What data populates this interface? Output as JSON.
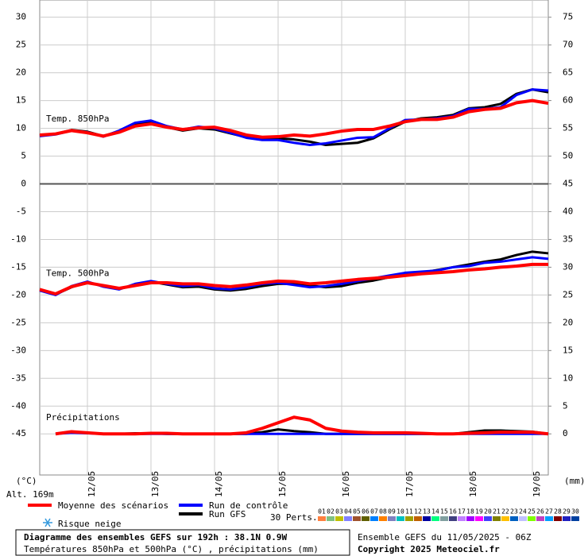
{
  "chart_data": {
    "type": "line",
    "categories": [
      null,
      null,
      null,
      "12/05",
      null,
      null,
      null,
      "13/05",
      null,
      null,
      null,
      "14/05",
      null,
      null,
      null,
      "15/05",
      null,
      null,
      null,
      "16/05",
      null,
      null,
      null,
      "17/05",
      null,
      null,
      null,
      "18/05",
      null,
      null,
      null,
      "19/05",
      null
    ],
    "ylim": [
      -52.4,
      33.1
    ],
    "yticks": [
      30,
      25,
      20,
      15,
      10,
      5,
      0,
      -5,
      -10,
      -15,
      -20,
      -25,
      -30,
      -35,
      -40,
      -45
    ],
    "y2lim": [
      -7.4,
      78.1
    ],
    "y2ticks": [
      75,
      70,
      65,
      60,
      55,
      50,
      45,
      40,
      35,
      30,
      25,
      20,
      15,
      10,
      5,
      0
    ],
    "ylabel": "(°C)",
    "y2label": "(mm)",
    "altitude": "Alt. 169m",
    "grid": true,
    "legend": {
      "mean": {
        "name": "Moyenne des scénarios",
        "color": "#ff0000"
      },
      "control": {
        "name": "Run de contrôle",
        "color": "#0000ff"
      },
      "gfs": {
        "name": "Run GFS",
        "color": "#000000"
      },
      "snow": "Risque neige",
      "perturbations_label": "30 Perts.",
      "perturbations": [
        {
          "name": "01",
          "color": "#ff8040"
        },
        {
          "name": "02",
          "color": "#80c080"
        },
        {
          "name": "03",
          "color": "#c0c000"
        },
        {
          "name": "04",
          "color": "#8080ff"
        },
        {
          "name": "05",
          "color": "#a0522d"
        },
        {
          "name": "06",
          "color": "#606000"
        },
        {
          "name": "07",
          "color": "#0080ff"
        },
        {
          "name": "08",
          "color": "#ff8000"
        },
        {
          "name": "09",
          "color": "#8080c0"
        },
        {
          "name": "10",
          "color": "#00c0c0"
        },
        {
          "name": "11",
          "color": "#a0a000"
        },
        {
          "name": "12",
          "color": "#c06000"
        },
        {
          "name": "13",
          "color": "#0000a0"
        },
        {
          "name": "14",
          "color": "#00ff80"
        },
        {
          "name": "15",
          "color": "#80a0a0"
        },
        {
          "name": "16",
          "color": "#404080"
        },
        {
          "name": "17",
          "color": "#c080ff"
        },
        {
          "name": "18",
          "color": "#a000ff"
        },
        {
          "name": "19",
          "color": "#ff00ff"
        },
        {
          "name": "20",
          "color": "#4040ff"
        },
        {
          "name": "21",
          "color": "#808000"
        },
        {
          "name": "22",
          "color": "#ffc000"
        },
        {
          "name": "23",
          "color": "#0060c0"
        },
        {
          "name": "24",
          "color": "#c0c0ff"
        },
        {
          "name": "25",
          "color": "#80ff00"
        },
        {
          "name": "26",
          "color": "#c040c0"
        },
        {
          "name": "27",
          "color": "#00a0ff"
        },
        {
          "name": "28",
          "color": "#800000"
        },
        {
          "name": "29",
          "color": "#2020c0"
        },
        {
          "name": "30",
          "color": "#0040a0"
        }
      ]
    },
    "panels": [
      {
        "label": "Temp. 850hPa",
        "axis": "y",
        "mean": [
          8.8,
          9,
          9.6,
          9.2,
          8.6,
          9.3,
          10.4,
          10.8,
          10.2,
          9.8,
          10.1,
          10.2,
          9.6,
          8.8,
          8.4,
          8.5,
          8.8,
          8.6,
          9,
          9.5,
          9.8,
          9.8,
          10.4,
          11.2,
          11.6,
          11.6,
          12,
          13,
          13.4,
          13.6,
          14.6,
          15,
          14.5
        ],
        "control": [
          8.6,
          8.9,
          9.6,
          9.3,
          8.5,
          9.6,
          11,
          11.4,
          10.4,
          9.8,
          10.3,
          10,
          9.2,
          8.3,
          7.9,
          7.9,
          7.4,
          7,
          7.3,
          7.8,
          8.3,
          8.4,
          10,
          11.5,
          11.6,
          11.8,
          12.2,
          13.5,
          13.5,
          13.8,
          16,
          17,
          16.8
        ],
        "gfs": [
          8.7,
          9,
          9.7,
          9.4,
          8.6,
          9.5,
          10.8,
          11.2,
          10.2,
          9.6,
          10,
          9.8,
          9.1,
          8.4,
          8,
          8.2,
          8,
          7.6,
          7,
          7.2,
          7.4,
          8.2,
          9.8,
          11.2,
          11.8,
          12,
          12.4,
          13.6,
          13.8,
          14.4,
          16.2,
          17,
          16.5
        ]
      },
      {
        "label": "Temp. 500hPa",
        "axis": "y",
        "mean": [
          -19,
          -19.8,
          -18.5,
          -17.8,
          -18.3,
          -18.8,
          -18.3,
          -17.8,
          -17.8,
          -18,
          -18,
          -18.3,
          -18.5,
          -18.2,
          -17.8,
          -17.5,
          -17.6,
          -18,
          -17.8,
          -17.5,
          -17.2,
          -17,
          -16.8,
          -16.5,
          -16.2,
          -16,
          -15.8,
          -15.5,
          -15.3,
          -15,
          -14.8,
          -14.5,
          -14.5
        ],
        "control": [
          -19.2,
          -20,
          -18.4,
          -17.6,
          -18.5,
          -19,
          -18,
          -17.5,
          -18,
          -18.4,
          -18.2,
          -18.8,
          -19,
          -18.6,
          -18,
          -17.8,
          -18.2,
          -18.6,
          -18.4,
          -18,
          -17.5,
          -17,
          -16.5,
          -16,
          -15.8,
          -15.6,
          -15,
          -14.8,
          -14.2,
          -14,
          -13.6,
          -13.2,
          -13.5
        ],
        "gfs": [
          -19.1,
          -19.9,
          -18.6,
          -17.7,
          -18.4,
          -18.9,
          -18.2,
          -17.6,
          -18.1,
          -18.6,
          -18.5,
          -19,
          -19.2,
          -18.9,
          -18.4,
          -18,
          -18,
          -18.3,
          -18.6,
          -18.4,
          -17.8,
          -17.4,
          -16.8,
          -16.4,
          -16,
          -15.5,
          -15,
          -14.5,
          -14,
          -13.6,
          -12.8,
          -12.2,
          -12.5
        ]
      },
      {
        "label": "Précipitations",
        "axis": "y2",
        "mean": [
          null,
          0,
          0.4,
          0.2,
          0,
          0,
          0,
          0.1,
          0.1,
          0,
          0,
          0,
          0,
          0.2,
          1,
          2,
          3,
          2.5,
          1,
          0.5,
          0.3,
          0.2,
          0.2,
          0.2,
          0.1,
          0,
          0,
          0.1,
          0.2,
          0.3,
          0.3,
          0.3,
          0
        ],
        "control": [
          null,
          0,
          0.2,
          0.1,
          0,
          0,
          0,
          0,
          0,
          0,
          0,
          0,
          0,
          0,
          0,
          0,
          0,
          0,
          0,
          0,
          0,
          0,
          0,
          0,
          0,
          0,
          0,
          0,
          0,
          0,
          0,
          0,
          0
        ],
        "gfs": [
          null,
          0,
          0.3,
          0.2,
          0,
          0,
          0.1,
          0.1,
          0,
          0,
          0,
          0,
          0,
          0,
          0.3,
          0.8,
          0.5,
          0.3,
          0,
          0,
          0,
          0,
          0,
          0,
          0,
          0,
          0,
          0.3,
          0.6,
          0.6,
          0.5,
          0.4,
          0
        ]
      }
    ],
    "title": "Diagramme des ensembles GEFS sur 192h : 38.1N 0.9W",
    "subtitle": "Températures 850hPa et 500hPa (°C) , précipitations (mm)",
    "run_info": "Ensemble GEFS du 11/05/2025 - 06Z",
    "copyright": "Copyright 2025 Meteociel.fr"
  }
}
